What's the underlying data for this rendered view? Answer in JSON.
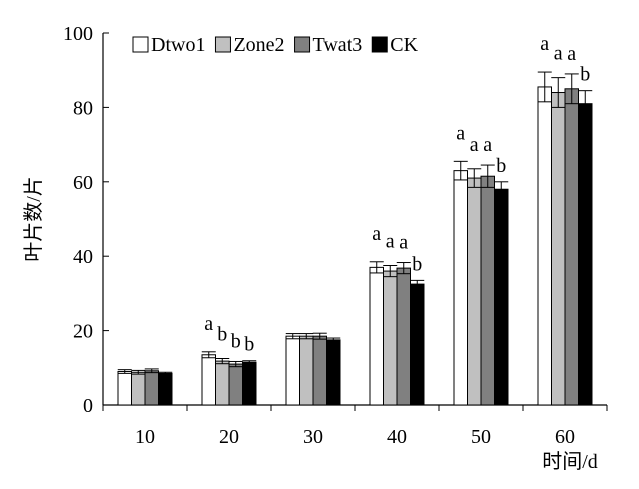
{
  "chart_data": {
    "type": "bar",
    "title": "",
    "xlabel": "时间/d",
    "ylabel": "叶片数/片",
    "ylim": [
      0,
      100
    ],
    "yticks": [
      0,
      20,
      40,
      60,
      80,
      100
    ],
    "grid": false,
    "legend_position": "top-left",
    "categories": [
      "10",
      "20",
      "30",
      "40",
      "50",
      "60"
    ],
    "series": [
      {
        "name": "Dtwo1",
        "fill": "#ffffff",
        "values": [
          9.0,
          13.5,
          18.5,
          37.0,
          63.0,
          85.5
        ],
        "errors": [
          0.5,
          0.8,
          0.7,
          1.5,
          2.5,
          4.0
        ],
        "letters": [
          "",
          "a",
          "",
          "a",
          "a",
          "a"
        ]
      },
      {
        "name": "Zone2",
        "fill": "#c0c0c0",
        "values": [
          8.8,
          11.8,
          18.5,
          36.0,
          61.0,
          84.0
        ],
        "errors": [
          0.5,
          0.7,
          0.7,
          1.5,
          2.5,
          4.0
        ],
        "letters": [
          "",
          "b",
          "",
          "a",
          "a",
          "a"
        ]
      },
      {
        "name": "Twat3",
        "fill": "#808080",
        "values": [
          9.2,
          11.0,
          18.5,
          36.8,
          61.5,
          85.0
        ],
        "errors": [
          0.5,
          0.7,
          0.8,
          1.5,
          3.0,
          4.0
        ],
        "letters": [
          "",
          "b",
          "",
          "a",
          "a",
          "a"
        ]
      },
      {
        "name": "CK",
        "fill": "#000000",
        "values": [
          8.5,
          11.5,
          17.5,
          32.5,
          58.0,
          81.0
        ],
        "errors": [
          0.3,
          0.4,
          0.5,
          1.0,
          2.0,
          3.5
        ],
        "letters": [
          "",
          "b",
          "",
          "b",
          "b",
          "b"
        ]
      }
    ]
  }
}
